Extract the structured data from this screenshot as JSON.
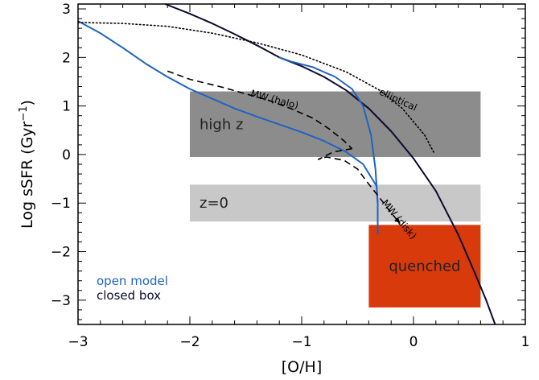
{
  "chart_data": {
    "type": "line",
    "xlabel": "[O/H]",
    "ylabel": "Log sSFR (Gyr",
    "ylabel_sup": "−1",
    "ylabel_close": ")",
    "xlim": [
      -3,
      1
    ],
    "ylim": [
      -3.5,
      3.1
    ],
    "xticks": [
      -3,
      -2,
      -1,
      0,
      1
    ],
    "xtick_labels": [
      "−3",
      "−2",
      "−1",
      "0",
      "1"
    ],
    "yticks": [
      -3,
      -2,
      -1,
      0,
      1,
      2,
      3
    ],
    "ytick_labels": [
      "−3",
      "−2",
      "−1",
      "0",
      "1",
      "2",
      "3"
    ],
    "regions": [
      {
        "label": "high z",
        "x": [
          -2.0,
          0.6
        ],
        "y": [
          -0.05,
          1.3
        ],
        "color": "#8c8c8c",
        "text_color": "#222222"
      },
      {
        "label": "z=0",
        "x": [
          -2.0,
          0.6
        ],
        "y": [
          -1.38,
          -0.62
        ],
        "color": "#c8c8c8",
        "text_color": "#222222"
      },
      {
        "label": "quenched",
        "x": [
          -0.4,
          0.6
        ],
        "y": [
          -3.15,
          -1.45
        ],
        "color": "#d83a0c",
        "text_color": "#222222"
      }
    ],
    "series": [
      {
        "name": "closed box",
        "color": "#0a0a30",
        "style": "solid",
        "x": [
          -2.22,
          -2.0,
          -1.8,
          -1.6,
          -1.4,
          -1.2,
          -1.0,
          -0.8,
          -0.6,
          -0.4,
          -0.2,
          0.0,
          0.2,
          0.4,
          0.55,
          0.65,
          0.73
        ],
        "y": [
          3.1,
          2.9,
          2.7,
          2.48,
          2.25,
          2.0,
          1.82,
          1.6,
          1.32,
          0.95,
          0.48,
          -0.08,
          -0.75,
          -1.65,
          -2.45,
          -3.0,
          -3.5
        ]
      },
      {
        "name": "open model",
        "color": "#1f63c2",
        "style": "solid",
        "x": [
          -3.0,
          -2.8,
          -2.6,
          -2.4,
          -2.2,
          -2.0,
          -1.8,
          -1.6,
          -1.4,
          -1.2,
          -1.0,
          -0.8,
          -0.6,
          -0.45,
          -0.33,
          -0.32,
          -0.32
        ],
        "y": [
          2.75,
          2.5,
          2.2,
          1.88,
          1.6,
          1.35,
          1.15,
          0.95,
          0.78,
          0.62,
          0.46,
          0.28,
          0.05,
          -0.2,
          -0.65,
          -1.0,
          -1.65
        ]
      },
      {
        "name": "open model",
        "color": "#1f63c2",
        "style": "solid",
        "x": [
          -1.2,
          -1.1,
          -0.9,
          -0.7,
          -0.55,
          -0.45,
          -0.38,
          -0.34,
          -0.32
        ],
        "y": [
          2.0,
          1.92,
          1.8,
          1.6,
          1.35,
          1.0,
          0.4,
          -0.3,
          -1.0
        ]
      },
      {
        "name": "",
        "color": "#000000",
        "style": "dotted",
        "x": [
          -3.0,
          -2.6,
          -2.2,
          -1.8,
          -1.4,
          -1.0,
          -0.6,
          -0.3,
          -0.1,
          0.1,
          0.18
        ],
        "y": [
          2.72,
          2.7,
          2.64,
          2.5,
          2.3,
          2.05,
          1.7,
          1.32,
          0.95,
          0.4,
          0.05
        ]
      },
      {
        "name": "",
        "color": "#000000",
        "style": "dashed",
        "x": [
          -2.2,
          -2.0,
          -1.7,
          -1.5,
          -1.3,
          -1.1,
          -0.9,
          -0.75,
          -0.62,
          -0.55
        ],
        "y": [
          1.72,
          1.55,
          1.38,
          1.25,
          1.12,
          0.95,
          0.75,
          0.52,
          0.28,
          0.12
        ]
      },
      {
        "name": "",
        "color": "#000000",
        "style": "dashed",
        "x": [
          -0.55,
          -0.72,
          -0.85,
          -0.78,
          -0.62,
          -0.5,
          -0.42,
          -0.3,
          -0.2,
          -0.12
        ],
        "y": [
          0.12,
          0.05,
          -0.1,
          -0.05,
          -0.12,
          -0.3,
          -0.55,
          -0.9,
          -1.2,
          -1.42
        ]
      }
    ],
    "annotations": [
      {
        "text": "MW (halo)",
        "x": -1.25,
        "y": 1.07,
        "angle": 15
      },
      {
        "text": "elliptical",
        "x": -0.15,
        "y": 1.07,
        "angle": 25
      },
      {
        "text": "MW (disk)",
        "x": -0.15,
        "y": -1.38,
        "angle": 50
      }
    ],
    "legend": {
      "placement": "bottom-left",
      "entries": [
        {
          "label": "open model",
          "color": "#1f63c2"
        },
        {
          "label": "closed box",
          "color": "#0a0a30"
        }
      ]
    }
  }
}
